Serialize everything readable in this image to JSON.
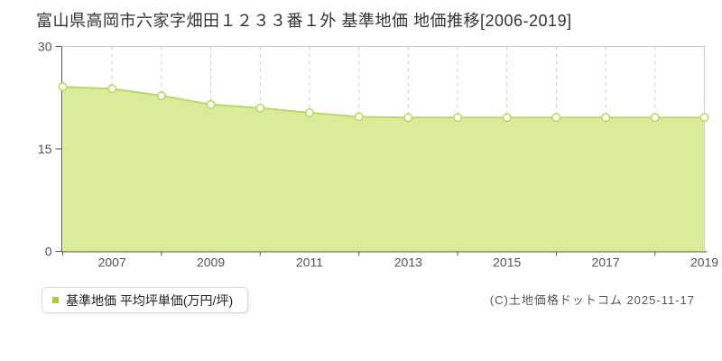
{
  "title": "富山県高岡市六家字畑田１２３３番１外 基準地価 地価推移[2006-2019]",
  "legend": {
    "label": "基準地価 平均坪単価(万円/坪)",
    "marker_color": "#a6ce39"
  },
  "copyright": "(C)土地価格ドットコム 2025-11-17",
  "chart_data": {
    "type": "area",
    "title": "富山県高岡市六家字畑田１２３３番１外 基準地価 地価推移[2006-2019]",
    "x": [
      2006,
      2007,
      2008,
      2009,
      2010,
      2011,
      2012,
      2013,
      2014,
      2015,
      2016,
      2017,
      2018,
      2019
    ],
    "series": [
      {
        "name": "基準地価 平均坪単価(万円/坪)",
        "values": [
          24.1,
          23.8,
          22.8,
          21.5,
          21.0,
          20.3,
          19.7,
          19.6,
          19.6,
          19.6,
          19.6,
          19.6,
          19.6,
          19.6
        ]
      }
    ],
    "xlabel": "",
    "ylabel": "万円/坪",
    "ylim": [
      0,
      30
    ],
    "yticks": [
      0,
      15,
      30
    ],
    "xtick_labels": [
      "2007",
      "2009",
      "2011",
      "2013",
      "2015",
      "2017",
      "2019"
    ],
    "grid": true,
    "legend_position": "bottom-left",
    "colors": {
      "line": "#bcd95e",
      "fill": "#d8ec99",
      "marker_fill": "#ffffff",
      "grid": "#cdcdcd",
      "axis": "#545454",
      "tick_text": "#545454",
      "plot_border": "#cccccc"
    }
  }
}
